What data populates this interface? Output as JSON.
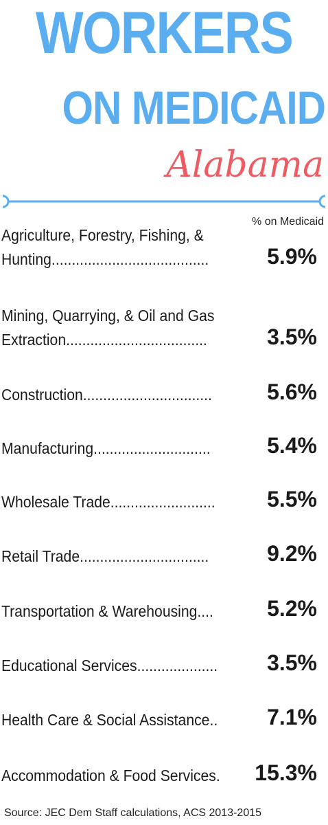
{
  "title_line1": "WORKERS",
  "title_line2": "ON MEDICAID",
  "subtitle": "Alabama",
  "colors": {
    "title": "#5aaef0",
    "subtitle": "#ef5b63",
    "divider": "#5aaef0",
    "text": "#1a1a1a"
  },
  "chart_data": {
    "type": "table",
    "title": "WORKERS ON MEDICAID Alabama",
    "column_header": "% on Medicaid",
    "rows": [
      {
        "lines": [
          "Agriculture, Forestry, Fishing, &",
          "Hunting......................................."
        ],
        "industry": "Agriculture, Forestry, Fishing, & Hunting",
        "value": 5.9,
        "value_label": "5.9%"
      },
      {
        "lines": [
          "Mining, Quarrying, & Oil and Gas",
          "Extraction..................................."
        ],
        "industry": "Mining, Quarrying, & Oil and Gas Extraction",
        "value": 3.5,
        "value_label": "3.5%"
      },
      {
        "lines": [
          "Construction................................"
        ],
        "industry": "Construction",
        "value": 5.6,
        "value_label": "5.6%"
      },
      {
        "lines": [
          "Manufacturing............................."
        ],
        "industry": "Manufacturing",
        "value": 5.4,
        "value_label": "5.4%"
      },
      {
        "lines": [
          "Wholesale Trade.........................."
        ],
        "industry": "Wholesale Trade",
        "value": 5.5,
        "value_label": "5.5%"
      },
      {
        "lines": [
          "Retail Trade................................"
        ],
        "industry": "Retail Trade",
        "value": 9.2,
        "value_label": "9.2%"
      },
      {
        "lines": [
          "Transportation & Warehousing...."
        ],
        "industry": "Transportation & Warehousing",
        "value": 5.2,
        "value_label": "5.2%"
      },
      {
        "lines": [
          "Educational Services...................."
        ],
        "industry": "Educational Services",
        "value": 3.5,
        "value_label": "3.5%"
      },
      {
        "lines": [
          "Health Care & Social Assistance.."
        ],
        "industry": "Health Care & Social Assistance",
        "value": 7.1,
        "value_label": "7.1%"
      },
      {
        "lines": [
          "Accommodation & Food Services."
        ],
        "industry": "Accommodation & Food Services",
        "value": 15.3,
        "value_label": "15.3%"
      }
    ],
    "source": "Source: JEC Dem Staff calculations, ACS 2013-2015"
  }
}
